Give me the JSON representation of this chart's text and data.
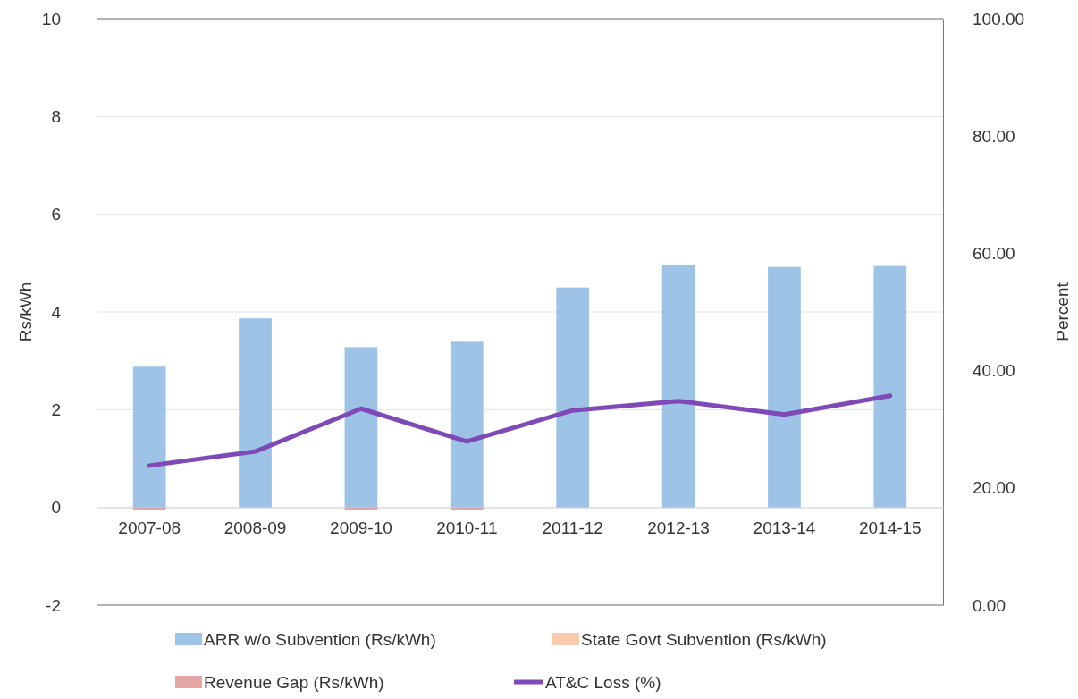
{
  "chart_data": {
    "type": "bar",
    "stacked": true,
    "categories": [
      "2007-08",
      "2008-09",
      "2009-10",
      "2010-11",
      "2011-12",
      "2012-13",
      "2013-14",
      "2014-15"
    ],
    "series": [
      {
        "name": "ARR w/o Subvention (Rs/kWh)",
        "color": "#9dc3e6",
        "values": [
          2.88,
          3.87,
          3.28,
          3.39,
          4.5,
          4.97,
          4.92,
          4.94
        ]
      },
      {
        "name": "State Govt Subvention (Rs/kWh)",
        "color": "#f8cbad",
        "values": [
          0,
          0,
          0,
          0,
          0,
          0,
          0,
          0
        ]
      },
      {
        "name": "Revenue Gap (Rs/kWh)",
        "color": "#e6a5a5",
        "values": [
          -0.05,
          0,
          -0.05,
          -0.05,
          0,
          0,
          0,
          0
        ]
      },
      {
        "name": "AT&C Loss (%)",
        "type": "line",
        "axis": "y2",
        "color": "#7f49b8",
        "values": [
          23.8,
          26.2,
          33.5,
          27.9,
          33.2,
          34.8,
          32.5,
          35.7
        ]
      }
    ],
    "ylabel": "Rs/kWh",
    "y2label": "Percent",
    "ylim": [
      -2,
      10
    ],
    "yticks": [
      -2,
      0,
      2,
      4,
      6,
      8,
      10
    ],
    "y2lim": [
      0,
      100
    ],
    "y2ticks": [
      {
        "value": 0,
        "label": "0.00"
      },
      {
        "value": 20,
        "label": "20.00"
      },
      {
        "value": 40,
        "label": "40.00"
      },
      {
        "value": 60,
        "label": "60.00"
      },
      {
        "value": 80,
        "label": "80.00"
      },
      {
        "value": 100,
        "label": "100.00"
      }
    ],
    "grid": "y",
    "legend": "bottom",
    "line_style": "solid",
    "marker": "none"
  }
}
